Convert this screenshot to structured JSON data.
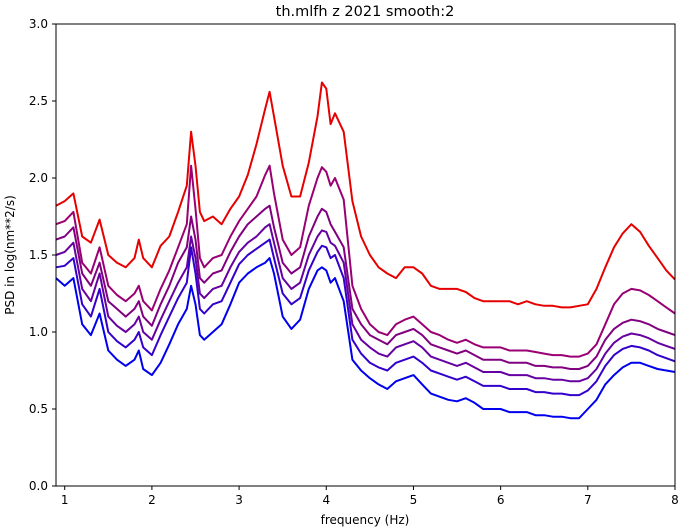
{
  "chart_data": {
    "type": "line",
    "title": "th.mlfh z 2021 smooth:2",
    "xlabel": "frequency (Hz)",
    "ylabel": "PSD in log(nm**2/s)",
    "xlim": [
      0.9,
      8.0
    ],
    "ylim": [
      0.0,
      3.0
    ],
    "xticks": [
      1,
      2,
      3,
      4,
      5,
      6,
      7,
      8
    ],
    "yticks": [
      0.0,
      0.5,
      1.0,
      1.5,
      2.0,
      2.5,
      3.0
    ],
    "grid": false,
    "legend": "none",
    "x": [
      0.9,
      1.0,
      1.1,
      1.2,
      1.3,
      1.4,
      1.5,
      1.6,
      1.7,
      1.8,
      1.85,
      1.9,
      2.0,
      2.1,
      2.2,
      2.3,
      2.4,
      2.45,
      2.5,
      2.55,
      2.6,
      2.7,
      2.8,
      2.9,
      3.0,
      3.1,
      3.2,
      3.3,
      3.35,
      3.4,
      3.5,
      3.6,
      3.7,
      3.8,
      3.9,
      3.95,
      4.0,
      4.05,
      4.1,
      4.2,
      4.3,
      4.4,
      4.5,
      4.6,
      4.7,
      4.8,
      4.9,
      5.0,
      5.1,
      5.2,
      5.3,
      5.4,
      5.5,
      5.6,
      5.7,
      5.8,
      5.9,
      6.0,
      6.1,
      6.2,
      6.3,
      6.4,
      6.5,
      6.6,
      6.7,
      6.8,
      6.9,
      7.0,
      7.1,
      7.2,
      7.3,
      7.4,
      7.5,
      7.6,
      7.7,
      7.8,
      7.9,
      8.0
    ],
    "series": [
      {
        "color": "#e60000",
        "values": [
          1.82,
          1.85,
          1.9,
          1.62,
          1.58,
          1.73,
          1.5,
          1.45,
          1.42,
          1.48,
          1.6,
          1.48,
          1.42,
          1.56,
          1.62,
          1.78,
          1.95,
          2.3,
          2.08,
          1.78,
          1.72,
          1.75,
          1.7,
          1.8,
          1.88,
          2.02,
          2.22,
          2.45,
          2.56,
          2.4,
          2.08,
          1.88,
          1.88,
          2.1,
          2.4,
          2.62,
          2.58,
          2.35,
          2.42,
          2.3,
          1.85,
          1.62,
          1.5,
          1.42,
          1.38,
          1.35,
          1.42,
          1.42,
          1.38,
          1.3,
          1.28,
          1.28,
          1.28,
          1.26,
          1.22,
          1.2,
          1.2,
          1.2,
          1.2,
          1.18,
          1.2,
          1.18,
          1.17,
          1.17,
          1.16,
          1.16,
          1.17,
          1.18,
          1.28,
          1.42,
          1.55,
          1.64,
          1.7,
          1.65,
          1.56,
          1.48,
          1.4,
          1.34
        ]
      },
      {
        "color": "#990073",
        "values": [
          1.7,
          1.72,
          1.78,
          1.45,
          1.38,
          1.55,
          1.3,
          1.24,
          1.2,
          1.25,
          1.3,
          1.2,
          1.14,
          1.28,
          1.4,
          1.55,
          1.7,
          2.08,
          1.8,
          1.48,
          1.42,
          1.48,
          1.5,
          1.62,
          1.72,
          1.8,
          1.88,
          2.02,
          2.08,
          1.9,
          1.6,
          1.5,
          1.55,
          1.82,
          2.0,
          2.07,
          2.04,
          1.95,
          2.0,
          1.86,
          1.3,
          1.15,
          1.05,
          1.0,
          0.98,
          1.05,
          1.08,
          1.1,
          1.05,
          1.0,
          0.98,
          0.95,
          0.93,
          0.95,
          0.92,
          0.9,
          0.9,
          0.9,
          0.88,
          0.88,
          0.88,
          0.87,
          0.86,
          0.85,
          0.85,
          0.84,
          0.84,
          0.86,
          0.92,
          1.05,
          1.18,
          1.25,
          1.28,
          1.27,
          1.24,
          1.2,
          1.16,
          1.12
        ]
      },
      {
        "color": "#800080",
        "values": [
          1.6,
          1.62,
          1.68,
          1.38,
          1.3,
          1.45,
          1.2,
          1.15,
          1.1,
          1.15,
          1.2,
          1.1,
          1.04,
          1.18,
          1.3,
          1.45,
          1.55,
          1.75,
          1.6,
          1.35,
          1.32,
          1.38,
          1.4,
          1.52,
          1.62,
          1.7,
          1.75,
          1.8,
          1.82,
          1.68,
          1.45,
          1.38,
          1.42,
          1.62,
          1.75,
          1.8,
          1.78,
          1.7,
          1.65,
          1.55,
          1.15,
          1.05,
          0.98,
          0.95,
          0.92,
          0.98,
          1.0,
          1.02,
          0.98,
          0.92,
          0.9,
          0.88,
          0.86,
          0.88,
          0.85,
          0.82,
          0.82,
          0.82,
          0.8,
          0.8,
          0.8,
          0.78,
          0.78,
          0.77,
          0.77,
          0.76,
          0.76,
          0.78,
          0.84,
          0.95,
          1.02,
          1.06,
          1.08,
          1.07,
          1.05,
          1.02,
          1.0,
          0.98
        ]
      },
      {
        "color": "#6600a0",
        "values": [
          1.5,
          1.52,
          1.58,
          1.28,
          1.2,
          1.38,
          1.1,
          1.04,
          1.0,
          1.05,
          1.1,
          1.0,
          0.95,
          1.08,
          1.2,
          1.32,
          1.42,
          1.62,
          1.48,
          1.25,
          1.22,
          1.28,
          1.3,
          1.42,
          1.52,
          1.58,
          1.62,
          1.68,
          1.7,
          1.58,
          1.35,
          1.28,
          1.32,
          1.5,
          1.62,
          1.66,
          1.65,
          1.58,
          1.56,
          1.45,
          1.05,
          0.95,
          0.9,
          0.86,
          0.84,
          0.9,
          0.92,
          0.94,
          0.9,
          0.84,
          0.82,
          0.8,
          0.78,
          0.8,
          0.77,
          0.74,
          0.74,
          0.74,
          0.72,
          0.72,
          0.72,
          0.7,
          0.7,
          0.69,
          0.69,
          0.68,
          0.68,
          0.7,
          0.76,
          0.86,
          0.93,
          0.97,
          0.99,
          0.98,
          0.96,
          0.93,
          0.91,
          0.89
        ]
      },
      {
        "color": "#3300cc",
        "values": [
          1.42,
          1.43,
          1.48,
          1.18,
          1.1,
          1.28,
          1.0,
          0.94,
          0.9,
          0.95,
          1.0,
          0.9,
          0.85,
          0.98,
          1.1,
          1.22,
          1.32,
          1.55,
          1.38,
          1.15,
          1.12,
          1.18,
          1.2,
          1.32,
          1.44,
          1.5,
          1.54,
          1.58,
          1.6,
          1.48,
          1.25,
          1.18,
          1.22,
          1.4,
          1.52,
          1.56,
          1.55,
          1.48,
          1.5,
          1.35,
          0.95,
          0.86,
          0.8,
          0.77,
          0.75,
          0.8,
          0.82,
          0.84,
          0.8,
          0.75,
          0.73,
          0.71,
          0.69,
          0.71,
          0.68,
          0.65,
          0.65,
          0.65,
          0.63,
          0.63,
          0.63,
          0.61,
          0.61,
          0.6,
          0.6,
          0.59,
          0.59,
          0.62,
          0.68,
          0.78,
          0.85,
          0.89,
          0.91,
          0.9,
          0.88,
          0.85,
          0.83,
          0.81
        ]
      },
      {
        "color": "#0000ee",
        "values": [
          1.35,
          1.3,
          1.35,
          1.05,
          0.98,
          1.12,
          0.88,
          0.82,
          0.78,
          0.82,
          0.88,
          0.76,
          0.72,
          0.8,
          0.92,
          1.05,
          1.15,
          1.3,
          1.18,
          0.98,
          0.95,
          1.0,
          1.05,
          1.18,
          1.32,
          1.38,
          1.42,
          1.45,
          1.48,
          1.38,
          1.1,
          1.02,
          1.08,
          1.28,
          1.4,
          1.42,
          1.4,
          1.32,
          1.35,
          1.2,
          0.82,
          0.75,
          0.7,
          0.66,
          0.63,
          0.68,
          0.7,
          0.72,
          0.66,
          0.6,
          0.58,
          0.56,
          0.55,
          0.57,
          0.54,
          0.5,
          0.5,
          0.5,
          0.48,
          0.48,
          0.48,
          0.46,
          0.46,
          0.45,
          0.45,
          0.44,
          0.44,
          0.5,
          0.56,
          0.66,
          0.72,
          0.77,
          0.8,
          0.8,
          0.78,
          0.76,
          0.75,
          0.74
        ]
      }
    ]
  }
}
